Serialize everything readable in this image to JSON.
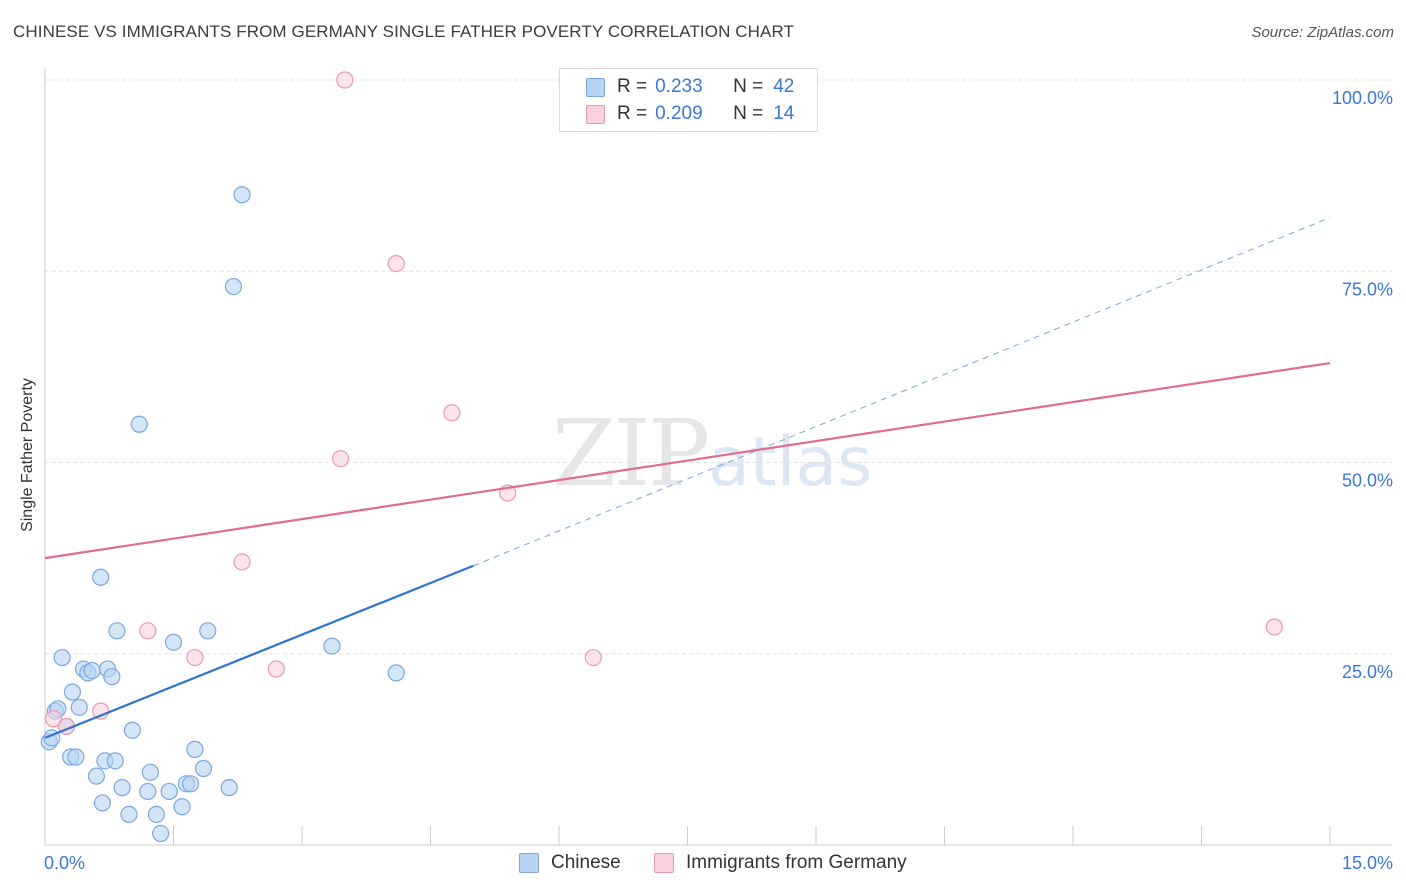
{
  "title": "CHINESE VS IMMIGRANTS FROM GERMANY SINGLE FATHER POVERTY CORRELATION CHART",
  "source": "Source: ZipAtlas.com",
  "watermark": {
    "zip": "ZIP",
    "atlas": "atlas"
  },
  "legend": {
    "r_label": "R =",
    "n_label": "N =",
    "rows": [
      {
        "r": "0.233",
        "n": "42",
        "color": "#a8c8f0",
        "border": "#7ba7e0"
      },
      {
        "r": "0.209",
        "n": "14",
        "color": "#f8c8d8",
        "border": "#e89ab4"
      }
    ]
  },
  "bottom_legend": [
    {
      "label": "Chinese",
      "color": "#b9d3f4",
      "border": "#7ba7e0"
    },
    {
      "label": "Immigrants from Germany",
      "color": "#fbd0de",
      "border": "#e89ab4"
    }
  ],
  "chart_data": {
    "type": "scatter",
    "title": "CHINESE VS IMMIGRANTS FROM GERMANY SINGLE FATHER POVERTY CORRELATION CHART",
    "xlabel": "",
    "ylabel": "Single Father Poverty",
    "xlim": [
      0,
      15
    ],
    "ylim": [
      0,
      100
    ],
    "x_tick_labels": [
      "0.0%",
      "15.0%"
    ],
    "y_tick_labels": [
      {
        "value": 25,
        "label": "25.0%"
      },
      {
        "value": 50,
        "label": "50.0%"
      },
      {
        "value": 75,
        "label": "75.0%"
      },
      {
        "value": 100,
        "label": "100.0%"
      }
    ],
    "grid": true,
    "series": [
      {
        "name": "Chinese",
        "color": "#7ba7e0",
        "fill": "#b9d3f4",
        "R": 0.233,
        "N": 42,
        "points": [
          [
            0.05,
            13.5
          ],
          [
            0.08,
            14.0
          ],
          [
            0.12,
            17.5
          ],
          [
            0.15,
            17.8
          ],
          [
            0.2,
            24.5
          ],
          [
            0.25,
            15.5
          ],
          [
            0.3,
            11.5
          ],
          [
            0.32,
            20.0
          ],
          [
            0.36,
            11.5
          ],
          [
            0.4,
            18.0
          ],
          [
            0.45,
            23.0
          ],
          [
            0.5,
            22.5
          ],
          [
            0.55,
            22.8
          ],
          [
            0.6,
            9.0
          ],
          [
            0.65,
            35.0
          ],
          [
            0.67,
            5.5
          ],
          [
            0.7,
            11.0
          ],
          [
            0.73,
            23.0
          ],
          [
            0.78,
            22.0
          ],
          [
            0.82,
            11.0
          ],
          [
            0.84,
            28.0
          ],
          [
            0.9,
            7.5
          ],
          [
            0.98,
            4.0
          ],
          [
            1.02,
            15.0
          ],
          [
            1.1,
            55.0
          ],
          [
            1.2,
            7.0
          ],
          [
            1.23,
            9.5
          ],
          [
            1.3,
            4.0
          ],
          [
            1.35,
            1.5
          ],
          [
            1.45,
            7.0
          ],
          [
            1.5,
            26.5
          ],
          [
            1.6,
            5.0
          ],
          [
            1.65,
            8.0
          ],
          [
            1.7,
            8.0
          ],
          [
            1.75,
            12.5
          ],
          [
            1.85,
            10.0
          ],
          [
            1.9,
            28.0
          ],
          [
            2.15,
            7.5
          ],
          [
            2.2,
            73.0
          ],
          [
            2.3,
            85.0
          ],
          [
            3.35,
            26.0
          ],
          [
            4.1,
            22.5
          ]
        ]
      },
      {
        "name": "Immigrants from Germany",
        "color": "#e89ab4",
        "fill": "#fbd0de",
        "R": 0.209,
        "N": 14,
        "points": [
          [
            0.1,
            16.5
          ],
          [
            0.25,
            15.5
          ],
          [
            0.65,
            17.5
          ],
          [
            1.2,
            28.0
          ],
          [
            1.75,
            24.5
          ],
          [
            2.3,
            37.0
          ],
          [
            2.7,
            23.0
          ],
          [
            3.45,
            50.5
          ],
          [
            3.5,
            100.0
          ],
          [
            4.1,
            76.0
          ],
          [
            4.75,
            56.5
          ],
          [
            5.4,
            46.0
          ],
          [
            6.4,
            24.5
          ],
          [
            14.35,
            28.5
          ]
        ]
      }
    ],
    "trend_lines": [
      {
        "series": "Chinese",
        "x_solid": [
          0,
          5.0
        ],
        "y_solid": [
          14.0,
          36.5
        ],
        "x_dashed": [
          5.0,
          15.0
        ],
        "y_dashed": [
          36.5,
          82.0
        ]
      },
      {
        "series": "Immigrants from Germany",
        "x": [
          0,
          15.0
        ],
        "y": [
          37.5,
          63.0
        ]
      }
    ]
  }
}
